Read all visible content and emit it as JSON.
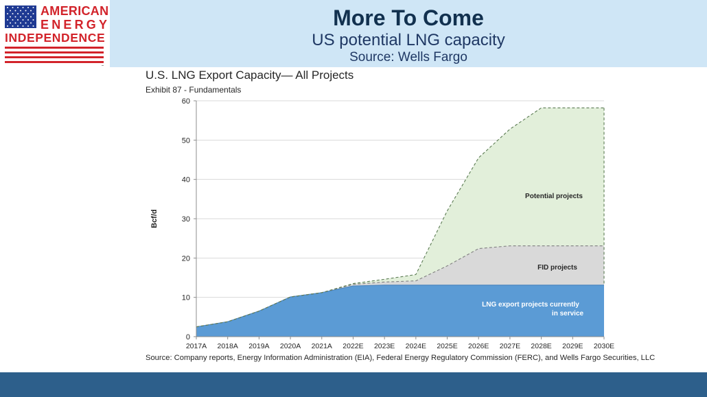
{
  "header": {
    "title": "More To Come",
    "subtitle": "US potential LNG capacity",
    "source": "Source: Wells Fargo",
    "background_color": "#cfe6f6",
    "title_color": "#12314f"
  },
  "logo": {
    "line1": "AMERICAN",
    "line2": "ENERGY",
    "line3": "INDEPENDENCE",
    "text_color": "#d2232a",
    "canton_color": "#1f3a93",
    "icon": "us-flag-icon"
  },
  "footer": {
    "color": "#2d5f8b"
  },
  "chart_data": {
    "type": "area",
    "title": "U.S. LNG Export Capacity— All Projects",
    "subtitle": "Exhibit 87 - Fundamentals",
    "ylabel": "Bcf/d",
    "xlabel": "",
    "source": "Source: Company reports, Energy Information Administration (EIA), Federal Energy Regulatory Commission (FERC), and Wells Fargo Securities, LLC",
    "categories": [
      "2017A",
      "2018A",
      "2019A",
      "2020A",
      "2021A",
      "2022E",
      "2023E",
      "2024E",
      "2025E",
      "2026E",
      "2027E",
      "2028E",
      "2029E",
      "2030E"
    ],
    "ylim": [
      0,
      60
    ],
    "yticks": [
      0,
      10,
      20,
      30,
      40,
      50,
      60
    ],
    "grid": true,
    "stacked_cumulative": true,
    "series": [
      {
        "name": "LNG export projects currently in service",
        "label_line1": "LNG export projects currently",
        "label_line2": "in service",
        "values": [
          2.5,
          3.8,
          6.5,
          10.1,
          11.2,
          12.9,
          13.1,
          13.1,
          13.1,
          13.1,
          13.1,
          13.1,
          13.1,
          13.1
        ],
        "color": "#5b9bd5",
        "border": "solid"
      },
      {
        "name": "FID projects",
        "label_line1": "FID projects",
        "values": [
          2.5,
          3.8,
          6.5,
          10.1,
          11.2,
          13.3,
          13.9,
          14.2,
          18.0,
          22.4,
          23.1,
          23.1,
          23.1,
          23.1
        ],
        "color": "#d9d9d9",
        "border": "dashed"
      },
      {
        "name": "Potential projects",
        "label_line1": "Potential projects",
        "values": [
          2.5,
          3.8,
          6.5,
          10.1,
          11.2,
          13.5,
          14.6,
          15.8,
          32.0,
          45.5,
          52.8,
          58.2,
          58.2,
          58.2
        ],
        "color": "#e2efda",
        "border": "dashed"
      }
    ]
  }
}
